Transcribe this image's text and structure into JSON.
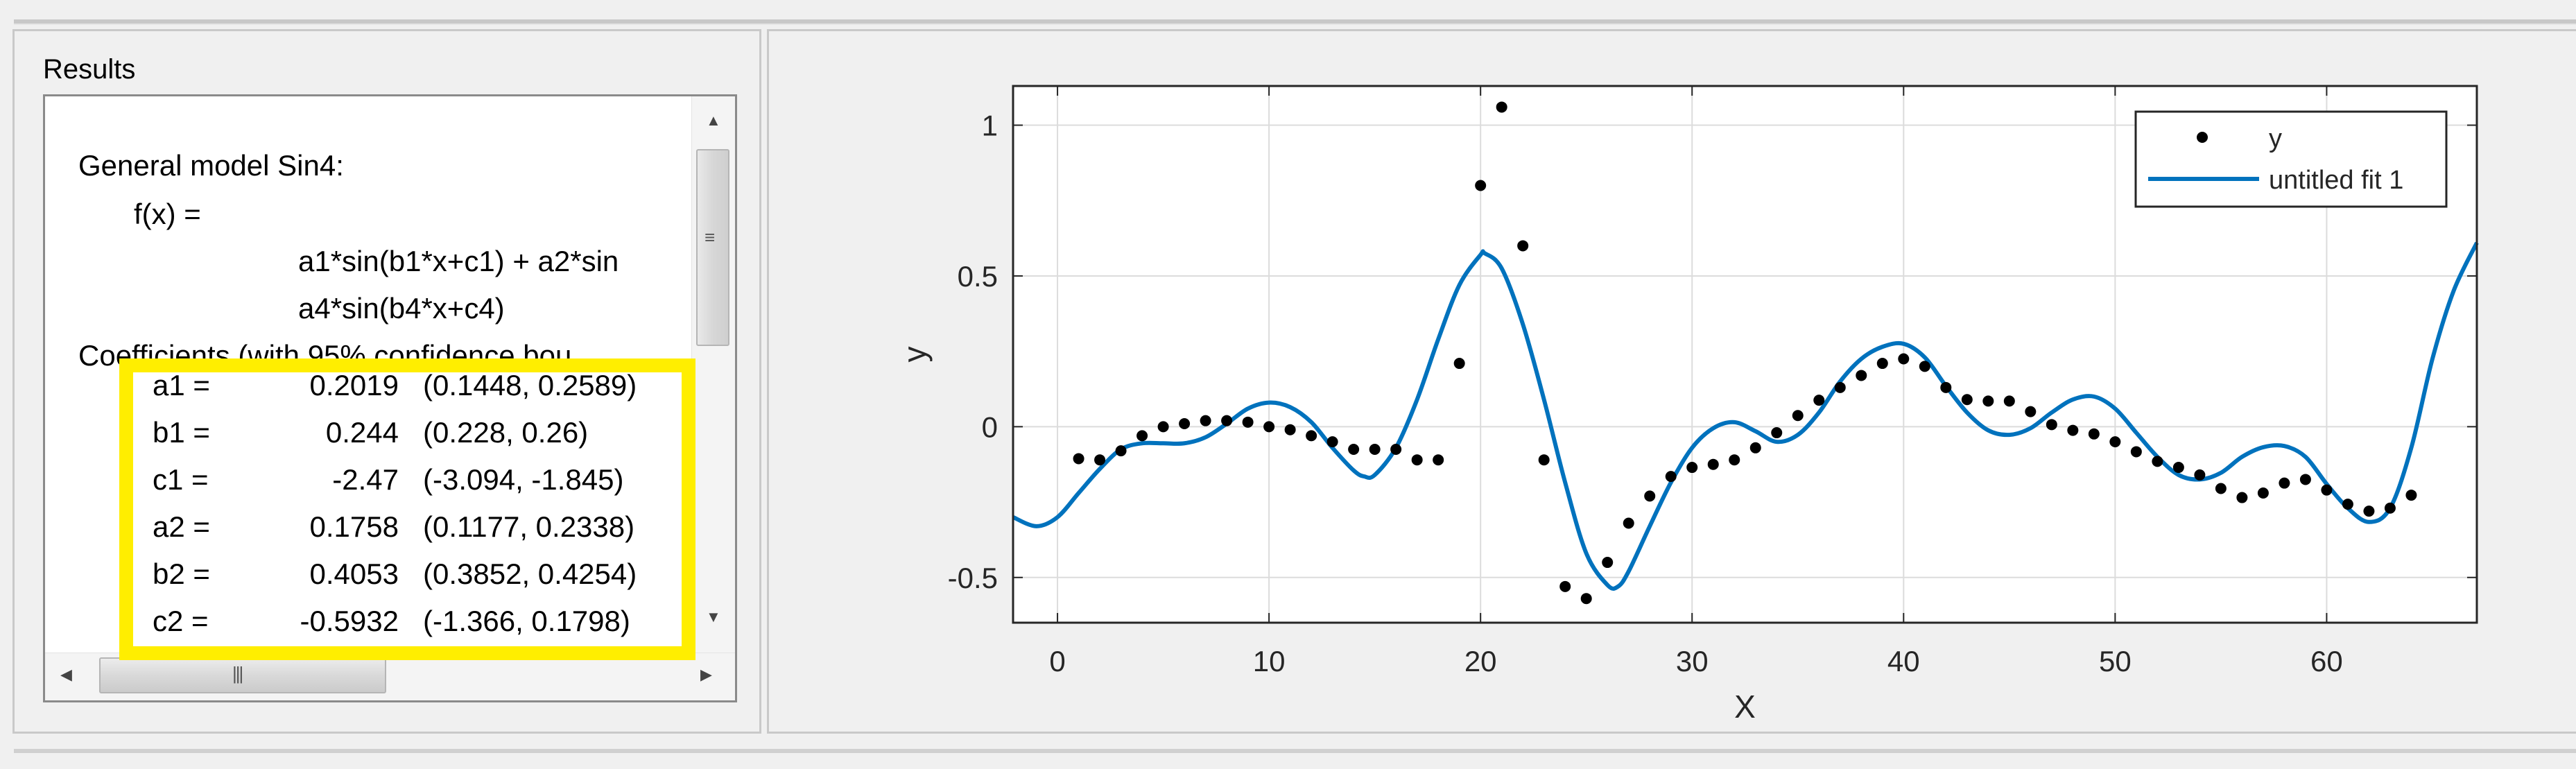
{
  "results": {
    "title": "Results",
    "lines": [
      "General model Sin4:",
      "f(x) =",
      "a1*sin(b1*x+c1) + a2*sin",
      "a4*sin(b4*x+c4)",
      "Coefficients (with 95% confidence bou"
    ],
    "coefficients": [
      {
        "name": "a1 =",
        "value": "0.2019",
        "interval": "(0.1448, 0.2589)"
      },
      {
        "name": "b1 =",
        "value": "0.244",
        "interval": "(0.228, 0.26)"
      },
      {
        "name": "c1 =",
        "value": "-2.47",
        "interval": "(-3.094, -1.845)"
      },
      {
        "name": "a2 =",
        "value": "0.1758",
        "interval": "(0.1177, 0.2338)"
      },
      {
        "name": "b2 =",
        "value": "0.4053",
        "interval": "(0.3852, 0.4254)"
      },
      {
        "name": "c2 =",
        "value": "-0.5932",
        "interval": "(-1.366, 0.1798)"
      }
    ],
    "highlight_color": "#ffee00"
  },
  "chart_data": {
    "type": "scatter",
    "xlabel": "X",
    "ylabel": "y",
    "xlim": [
      -2.1,
      67.1
    ],
    "ylim": [
      -0.65,
      1.13
    ],
    "xticks": [
      0,
      10,
      20,
      30,
      40,
      50,
      60
    ],
    "yticks": [
      -0.5,
      0,
      0.5,
      1
    ],
    "xtick_labels": [
      "0",
      "10",
      "20",
      "30",
      "40",
      "50",
      "60"
    ],
    "ytick_labels": [
      "-0.5",
      "0",
      "0.5",
      "1"
    ],
    "grid": true,
    "legend_placement": "top-right",
    "series": [
      {
        "name": "y",
        "kind": "markers",
        "color": "#000000",
        "x": [
          1,
          2,
          3,
          4,
          5,
          6,
          7,
          8,
          9,
          10,
          11,
          12,
          13,
          14,
          15,
          16,
          17,
          18,
          19,
          20,
          21,
          22,
          23,
          24,
          25,
          26,
          27,
          28,
          29,
          30,
          31,
          32,
          33,
          34,
          35,
          36,
          37,
          38,
          39,
          40,
          41,
          42,
          43,
          44,
          45,
          46,
          47,
          48,
          49,
          50,
          51,
          52,
          53,
          54,
          55,
          56,
          57,
          58,
          59,
          60,
          61,
          62,
          63,
          64
        ],
        "y": [
          -0.106,
          -0.11,
          -0.08,
          -0.03,
          0.0,
          0.01,
          0.02,
          0.02,
          0.015,
          0.0,
          -0.01,
          -0.03,
          -0.05,
          -0.075,
          -0.075,
          -0.075,
          -0.11,
          -0.11,
          0.21,
          0.8,
          1.06,
          0.6,
          -0.11,
          -0.53,
          -0.57,
          -0.45,
          -0.32,
          -0.23,
          -0.165,
          -0.135,
          -0.125,
          -0.11,
          -0.07,
          -0.02,
          0.037,
          0.088,
          0.13,
          0.17,
          0.21,
          0.225,
          0.2,
          0.13,
          0.09,
          0.085,
          0.085,
          0.05,
          0.007,
          -0.012,
          -0.024,
          -0.05,
          -0.083,
          -0.115,
          -0.135,
          -0.16,
          -0.205,
          -0.235,
          -0.22,
          -0.187,
          -0.175,
          -0.21,
          -0.257,
          -0.28,
          -0.27,
          -0.227
        ]
      },
      {
        "name": "untitled fit 1",
        "kind": "line",
        "color": "#0072bd",
        "x": [
          -2.1,
          -1,
          0,
          1,
          2,
          3,
          4,
          5,
          6,
          7,
          8,
          9,
          10,
          11,
          12,
          13,
          14,
          14.5,
          15,
          16,
          17,
          18,
          19,
          20,
          20.2,
          21,
          22,
          23,
          24,
          25,
          26,
          26.5,
          27,
          28,
          29,
          30,
          31,
          32,
          33,
          34,
          35,
          36,
          37,
          38,
          39,
          40,
          41,
          42,
          43,
          44,
          45,
          46,
          47,
          48,
          49,
          50,
          51,
          52,
          53,
          54,
          55,
          56,
          57,
          58,
          59,
          60,
          61,
          62,
          63,
          64,
          65,
          66,
          67.1
        ],
        "y": [
          -0.3,
          -0.33,
          -0.3,
          -0.22,
          -0.14,
          -0.075,
          -0.055,
          -0.055,
          -0.055,
          -0.035,
          0.01,
          0.06,
          0.08,
          0.065,
          0.015,
          -0.07,
          -0.145,
          -0.165,
          -0.16,
          -0.07,
          0.09,
          0.29,
          0.47,
          0.57,
          0.575,
          0.525,
          0.34,
          0.09,
          -0.185,
          -0.42,
          -0.525,
          -0.53,
          -0.48,
          -0.33,
          -0.185,
          -0.07,
          -0.005,
          0.015,
          -0.015,
          -0.05,
          -0.027,
          0.047,
          0.15,
          0.225,
          0.265,
          0.275,
          0.23,
          0.135,
          0.047,
          -0.012,
          -0.027,
          -0.005,
          0.047,
          0.09,
          0.1,
          0.06,
          -0.02,
          -0.1,
          -0.16,
          -0.175,
          -0.153,
          -0.1,
          -0.068,
          -0.064,
          -0.1,
          -0.19,
          -0.27,
          -0.316,
          -0.27,
          -0.07,
          0.225,
          0.45,
          0.61
        ]
      }
    ]
  }
}
